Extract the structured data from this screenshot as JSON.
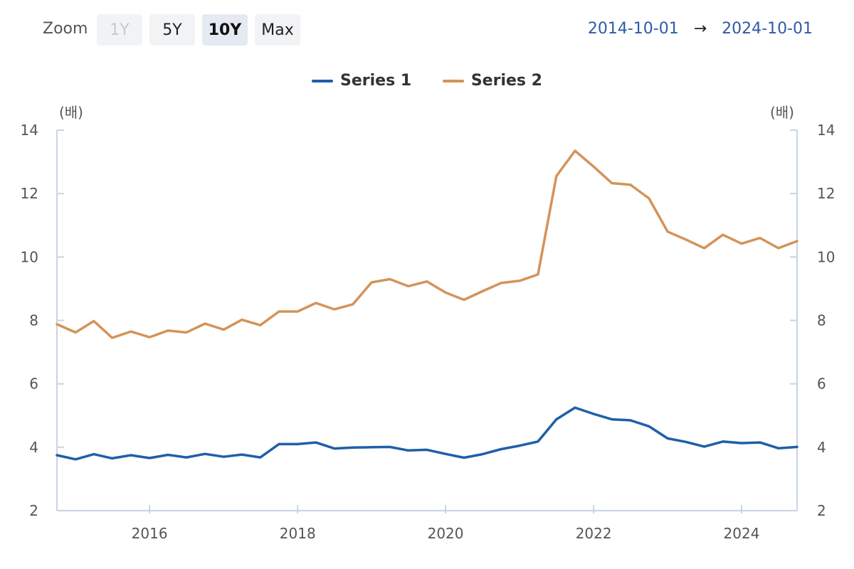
{
  "toolbar": {
    "zoom_label": "Zoom",
    "buttons": {
      "y1": "1Y",
      "y5": "5Y",
      "y10": "10Y",
      "max": "Max"
    },
    "active": "10Y",
    "range_start": "2014-10-01",
    "range_arrow": "→",
    "range_end": "2024-10-01"
  },
  "chart_data": {
    "type": "line",
    "title": "",
    "xlabel": "",
    "ylabel_left": "(배)",
    "ylabel_right": "(배)",
    "x_range": [
      "2014-10-01",
      "2024-10-01"
    ],
    "ylim": [
      2,
      14
    ],
    "y_ticks": [
      2,
      4,
      6,
      8,
      10,
      12,
      14
    ],
    "x_ticks": [
      "2016",
      "2018",
      "2020",
      "2022",
      "2024"
    ],
    "legend_position": "top-center",
    "grid": false,
    "colors": {
      "series1": "#1f5fa8",
      "series2": "#d4935a",
      "axis": "#c8d4e6"
    },
    "x": [
      "2014-10-01",
      "2015-01-01",
      "2015-04-01",
      "2015-07-01",
      "2015-10-01",
      "2016-01-01",
      "2016-04-01",
      "2016-07-01",
      "2016-10-01",
      "2017-01-01",
      "2017-04-01",
      "2017-07-01",
      "2017-10-01",
      "2018-01-01",
      "2018-04-01",
      "2018-07-01",
      "2018-10-01",
      "2019-01-01",
      "2019-04-01",
      "2019-07-01",
      "2019-10-01",
      "2020-01-01",
      "2020-04-01",
      "2020-07-01",
      "2020-10-01",
      "2021-01-01",
      "2021-04-01",
      "2021-07-01",
      "2021-10-01",
      "2022-01-01",
      "2022-04-01",
      "2022-07-01",
      "2022-10-01",
      "2023-01-01",
      "2023-04-01",
      "2023-07-01",
      "2023-10-01",
      "2024-01-01",
      "2024-04-01",
      "2024-07-01",
      "2024-10-01"
    ],
    "series": [
      {
        "name": "Series 1",
        "values": [
          3.75,
          3.62,
          3.78,
          3.65,
          3.75,
          3.66,
          3.76,
          3.68,
          3.79,
          3.7,
          3.77,
          3.68,
          4.1,
          4.1,
          4.15,
          3.96,
          3.99,
          4.0,
          4.01,
          3.9,
          3.92,
          3.79,
          3.67,
          3.78,
          3.94,
          4.05,
          4.18,
          4.88,
          5.25,
          5.05,
          4.88,
          4.85,
          4.66,
          4.28,
          4.17,
          4.02,
          4.18,
          4.13,
          4.15,
          3.97,
          4.01
        ]
      },
      {
        "name": "Series 2",
        "values": [
          7.88,
          7.62,
          7.98,
          7.45,
          7.65,
          7.47,
          7.68,
          7.62,
          7.9,
          7.71,
          8.02,
          7.85,
          8.28,
          8.28,
          8.55,
          8.35,
          8.51,
          9.2,
          9.3,
          9.08,
          9.23,
          8.88,
          8.65,
          8.92,
          9.18,
          9.25,
          9.45,
          12.55,
          13.35,
          12.85,
          12.33,
          12.28,
          11.85,
          10.8,
          10.55,
          10.28,
          10.7,
          10.42,
          10.6,
          10.28,
          10.5
        ]
      }
    ]
  }
}
